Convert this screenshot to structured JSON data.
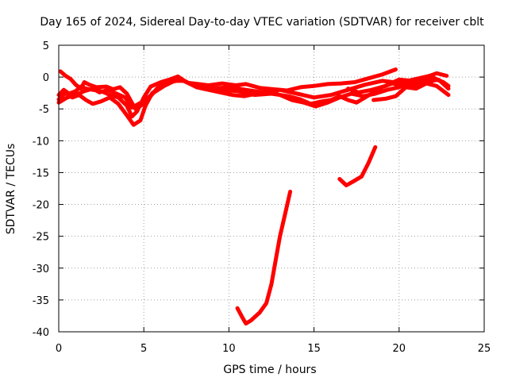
{
  "chart_data": {
    "type": "line",
    "title": "Day 165 of 2024, Sidereal Day-to-day VTEC variation (SDTVAR) for receiver cblt",
    "xlabel": "GPS time / hours",
    "ylabel": "SDTVAR / TECUs",
    "xlim": [
      0,
      25
    ],
    "ylim": [
      -40,
      5
    ],
    "xticks": [
      0,
      5,
      10,
      15,
      20,
      25
    ],
    "yticks": [
      5,
      0,
      -5,
      -10,
      -15,
      -20,
      -25,
      -30,
      -35,
      -40
    ],
    "grid": true,
    "color": "#ff0000",
    "series": [
      {
        "name": "trace-1",
        "points": [
          [
            0.0,
            -2.8
          ],
          [
            0.3,
            -2.0
          ],
          [
            0.6,
            -2.6
          ],
          [
            1.0,
            -2.2
          ],
          [
            1.3,
            -1.5
          ],
          [
            1.6,
            -1.8
          ],
          [
            2.0,
            -2.0
          ],
          [
            2.5,
            -2.2
          ],
          [
            3.0,
            -2.8
          ],
          [
            3.5,
            -3.2
          ],
          [
            4.0,
            -4.5
          ],
          [
            4.3,
            -6.2
          ],
          [
            4.6,
            -5.4
          ],
          [
            5.0,
            -3.2
          ],
          [
            5.4,
            -1.5
          ],
          [
            6.0,
            -0.8
          ],
          [
            6.5,
            -0.4
          ],
          [
            7.0,
            0.1
          ],
          [
            7.5,
            -0.8
          ],
          [
            8.0,
            -1.4
          ],
          [
            9.0,
            -1.8
          ],
          [
            10.0,
            -1.6
          ],
          [
            11.0,
            -2.0
          ],
          [
            12.0,
            -2.4
          ],
          [
            13.0,
            -2.0
          ],
          [
            14.0,
            -2.6
          ],
          [
            15.0,
            -3.2
          ],
          [
            16.0,
            -2.8
          ],
          [
            17.0,
            -2.0
          ],
          [
            18.0,
            -1.2
          ],
          [
            19.0,
            -0.6
          ],
          [
            20.0,
            -0.9
          ],
          [
            21.0,
            -0.3
          ],
          [
            21.8,
            0.2
          ],
          [
            22.4,
            -0.6
          ],
          [
            22.9,
            -1.8
          ]
        ]
      },
      {
        "name": "trace-2",
        "points": [
          [
            0.0,
            -3.5
          ],
          [
            0.4,
            -2.5
          ],
          [
            0.8,
            -3.2
          ],
          [
            1.2,
            -2.8
          ],
          [
            1.6,
            -3.6
          ],
          [
            2.0,
            -4.2
          ],
          [
            2.5,
            -3.8
          ],
          [
            3.0,
            -3.2
          ],
          [
            3.5,
            -4.2
          ],
          [
            4.0,
            -6.0
          ],
          [
            4.4,
            -7.5
          ],
          [
            4.8,
            -6.8
          ],
          [
            5.1,
            -4.5
          ],
          [
            5.5,
            -2.5
          ],
          [
            6.0,
            -1.6
          ],
          [
            6.6,
            -0.8
          ],
          [
            7.2,
            -0.4
          ],
          [
            7.8,
            -1.2
          ],
          [
            8.5,
            -1.8
          ],
          [
            9.5,
            -2.0
          ],
          [
            10.5,
            -2.2
          ],
          [
            11.5,
            -2.8
          ],
          [
            12.5,
            -2.6
          ],
          [
            13.5,
            -3.0
          ],
          [
            14.2,
            -3.5
          ],
          [
            14.8,
            -4.2
          ],
          [
            15.5,
            -3.8
          ],
          [
            16.0,
            -3.6
          ],
          [
            16.5,
            -3.0
          ],
          [
            17.0,
            -3.6
          ],
          [
            17.5,
            -4.0
          ],
          [
            18.0,
            -3.2
          ],
          [
            18.5,
            -2.4
          ],
          [
            19.0,
            -1.6
          ],
          [
            19.6,
            -1.0
          ],
          [
            20.2,
            -1.4
          ],
          [
            21.0,
            -1.2
          ],
          [
            21.6,
            -0.8
          ],
          [
            22.3,
            -0.4
          ],
          [
            22.8,
            -1.2
          ]
        ]
      },
      {
        "name": "trace-3",
        "points": [
          [
            0.1,
            0.9
          ],
          [
            0.4,
            0.2
          ],
          [
            0.7,
            -0.3
          ],
          [
            1.0,
            -1.2
          ],
          [
            1.3,
            -1.8
          ],
          [
            1.5,
            -0.8
          ],
          [
            1.8,
            -1.2
          ],
          [
            2.2,
            -1.6
          ],
          [
            2.8,
            -1.5
          ],
          [
            3.2,
            -1.9
          ],
          [
            3.6,
            -1.6
          ],
          [
            4.0,
            -2.6
          ],
          [
            4.5,
            -5.0
          ],
          [
            5.0,
            -4.2
          ],
          [
            5.4,
            -3.0
          ],
          [
            5.8,
            -1.7
          ],
          [
            6.4,
            -0.9
          ],
          [
            7.0,
            -0.2
          ],
          [
            7.6,
            -0.9
          ],
          [
            8.2,
            -1.1
          ],
          [
            8.8,
            -1.3
          ],
          [
            9.6,
            -1.0
          ],
          [
            10.4,
            -1.3
          ],
          [
            11.0,
            -1.1
          ],
          [
            11.8,
            -1.7
          ],
          [
            12.6,
            -1.9
          ],
          [
            13.4,
            -2.1
          ],
          [
            14.2,
            -1.6
          ],
          [
            15.0,
            -1.4
          ],
          [
            15.8,
            -1.1
          ],
          [
            16.6,
            -1.0
          ],
          [
            17.4,
            -0.8
          ],
          [
            18.2,
            -0.2
          ],
          [
            19.0,
            0.4
          ],
          [
            19.8,
            1.2
          ]
        ]
      },
      {
        "name": "trace-4",
        "points": [
          [
            0.0,
            -4.0
          ],
          [
            0.5,
            -3.2
          ],
          [
            1.0,
            -2.8
          ],
          [
            1.5,
            -2.2
          ],
          [
            2.0,
            -1.8
          ],
          [
            2.4,
            -2.4
          ],
          [
            2.9,
            -2.0
          ],
          [
            3.4,
            -2.6
          ],
          [
            3.9,
            -3.2
          ],
          [
            4.3,
            -4.8
          ],
          [
            4.7,
            -4.2
          ],
          [
            5.1,
            -3.6
          ],
          [
            5.6,
            -2.4
          ],
          [
            6.2,
            -1.4
          ],
          [
            6.8,
            -0.6
          ],
          [
            7.4,
            -0.6
          ],
          [
            8.1,
            -1.6
          ],
          [
            8.8,
            -2.0
          ],
          [
            9.5,
            -2.4
          ],
          [
            10.2,
            -2.8
          ],
          [
            10.9,
            -3.0
          ],
          [
            11.6,
            -2.6
          ],
          [
            12.3,
            -2.2
          ],
          [
            13.0,
            -2.8
          ],
          [
            13.7,
            -3.6
          ],
          [
            14.4,
            -4.0
          ],
          [
            15.1,
            -4.6
          ],
          [
            15.8,
            -4.0
          ],
          [
            16.5,
            -3.2
          ],
          [
            17.2,
            -2.6
          ],
          [
            17.9,
            -3.0
          ],
          [
            18.6,
            -2.6
          ],
          [
            19.3,
            -2.0
          ],
          [
            20.0,
            -1.6
          ],
          [
            20.7,
            -1.0
          ],
          [
            21.4,
            -0.6
          ],
          [
            22.0,
            -0.2
          ],
          [
            22.6,
            -0.8
          ],
          [
            22.9,
            -1.4
          ]
        ]
      },
      {
        "name": "trace-5",
        "points": [
          [
            10.5,
            -36.3
          ],
          [
            10.8,
            -37.8
          ],
          [
            11.0,
            -38.7
          ],
          [
            11.3,
            -38.2
          ],
          [
            11.8,
            -37.0
          ],
          [
            12.2,
            -35.5
          ],
          [
            12.5,
            -32.5
          ],
          [
            12.8,
            -28.0
          ],
          [
            13.0,
            -25.0
          ],
          [
            13.3,
            -21.5
          ],
          [
            13.6,
            -18.0
          ]
        ]
      },
      {
        "name": "trace-6",
        "points": [
          [
            16.5,
            -16.0
          ],
          [
            16.9,
            -17.0
          ],
          [
            17.3,
            -16.4
          ],
          [
            17.8,
            -15.6
          ],
          [
            18.2,
            -13.5
          ],
          [
            18.6,
            -11.0
          ]
        ]
      },
      {
        "name": "trace-7",
        "points": [
          [
            17.0,
            -1.8
          ],
          [
            17.6,
            -2.4
          ],
          [
            18.4,
            -2.0
          ],
          [
            19.2,
            -1.4
          ],
          [
            20.0,
            -0.4
          ],
          [
            20.8,
            -0.6
          ],
          [
            21.6,
            0.0
          ],
          [
            22.2,
            0.6
          ],
          [
            22.8,
            0.2
          ]
        ]
      },
      {
        "name": "trace-8",
        "points": [
          [
            18.5,
            -3.6
          ],
          [
            19.2,
            -3.4
          ],
          [
            19.8,
            -3.0
          ],
          [
            20.4,
            -1.6
          ],
          [
            21.0,
            -1.8
          ],
          [
            21.6,
            -1.0
          ],
          [
            22.2,
            -1.4
          ],
          [
            22.9,
            -2.8
          ]
        ]
      }
    ]
  }
}
